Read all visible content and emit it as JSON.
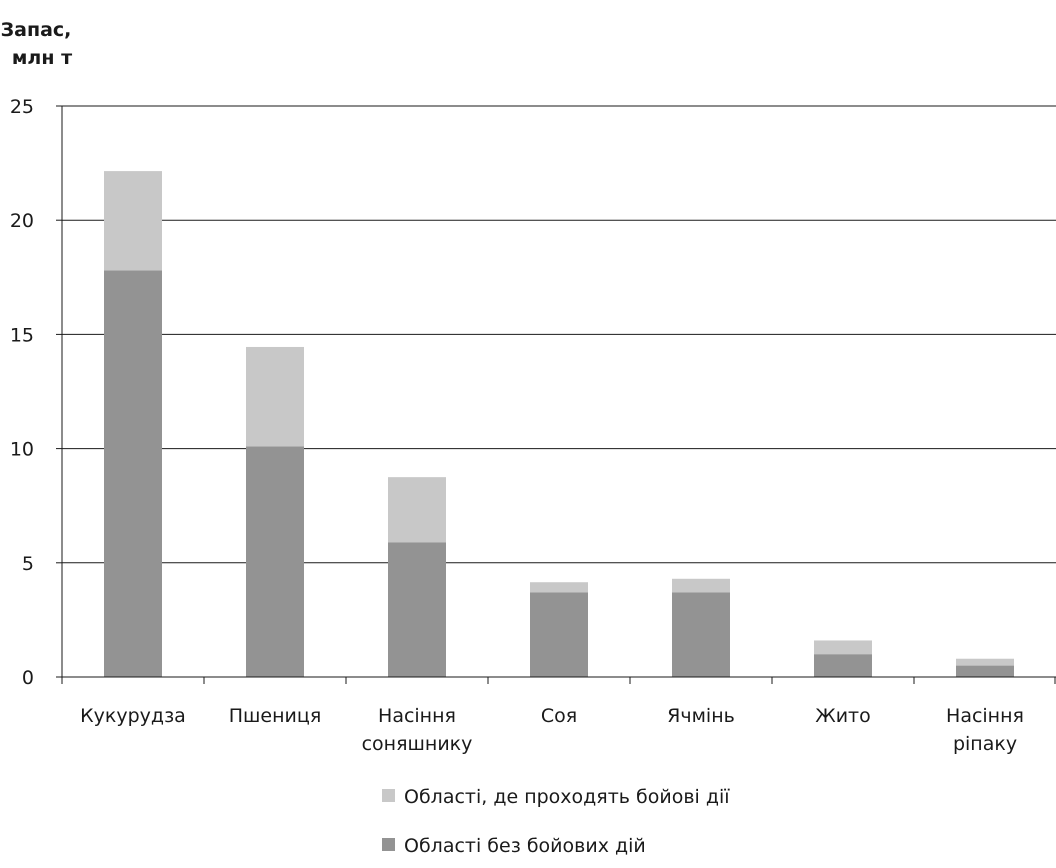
{
  "chart_data": {
    "type": "bar",
    "stacked": true,
    "ylabel": [
      "Запас,",
      "млн т"
    ],
    "xlabel": "",
    "ylim": [
      0,
      25
    ],
    "yticks": [
      0,
      5,
      10,
      15,
      20,
      25
    ],
    "grid": true,
    "legend_position": "bottom",
    "categories": [
      [
        "Кукурудза"
      ],
      [
        "Пшениця"
      ],
      [
        "Насіння",
        "соняшнику"
      ],
      [
        "Соя"
      ],
      [
        "Ячмінь"
      ],
      [
        "Жито"
      ],
      [
        "Насіння",
        "ріпаку"
      ]
    ],
    "series": [
      {
        "name": "Області без бойових дій",
        "color": "#939393",
        "values": [
          17.8,
          10.1,
          5.9,
          3.7,
          3.7,
          1.0,
          0.5
        ]
      },
      {
        "name": "Області, де проходять бойові дії",
        "color": "#c8c8c8",
        "values": [
          4.35,
          4.35,
          2.85,
          0.45,
          0.6,
          0.6,
          0.3
        ]
      }
    ],
    "legend_order": [
      1,
      0
    ]
  },
  "colors": {
    "axis": "#1a1a1a",
    "grid": "#1a1a1a",
    "text": "#1a1a1a"
  }
}
